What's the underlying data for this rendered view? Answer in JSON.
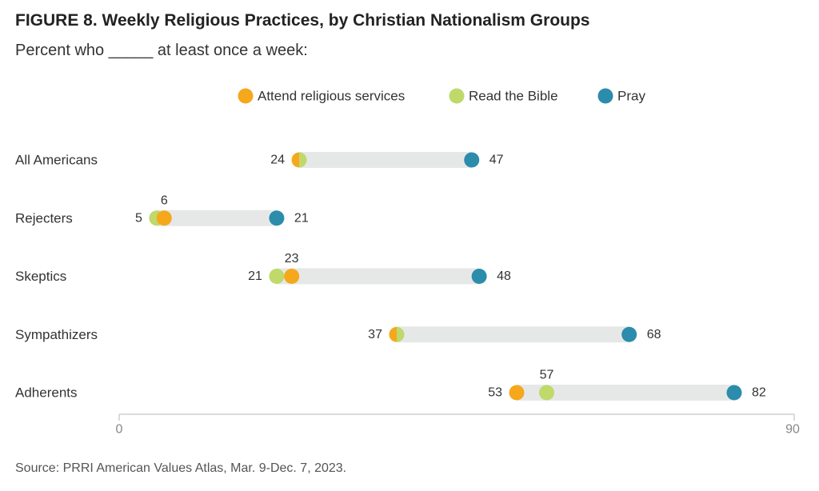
{
  "title": "FIGURE 8. Weekly Religious Practices, by Christian Nationalism Groups",
  "subtitle": "Percent who _____ at least once a week:",
  "source": "Source: PRRI American Values Atlas, Mar. 9-Dec. 7, 2023.",
  "colors": {
    "attend": "#F5A81C",
    "bible": "#BFD96A",
    "pray": "#2C8CAB",
    "track": "#E6E8E8",
    "axis": "#CFCFCF",
    "text": "#333333",
    "tick": "#888888"
  },
  "chart_data": {
    "type": "dot",
    "title": "FIGURE 8. Weekly Religious Practices, by Christian Nationalism Groups",
    "subtitle": "Percent who _____ at least once a week:",
    "xlim": [
      0,
      90
    ],
    "x_ticks": [
      "0",
      "90"
    ],
    "legend_position": "top-center",
    "grid": false,
    "categories": [
      "All Americans",
      "Rejecters",
      "Skeptics",
      "Sympathizers",
      "Adherents"
    ],
    "series": [
      {
        "name": "Attend religious services",
        "key": "attend",
        "values": [
          24,
          6,
          23,
          37,
          53
        ]
      },
      {
        "name": "Read the Bible",
        "key": "bible",
        "values": [
          24,
          5,
          21,
          37,
          57
        ]
      },
      {
        "name": "Pray",
        "key": "pray",
        "values": [
          47,
          21,
          48,
          68,
          82
        ]
      }
    ],
    "point_labels": [
      [
        {
          "text": "24",
          "side": "left"
        },
        {
          "text": "47",
          "side": "right"
        }
      ],
      [
        {
          "text": "5",
          "side": "left"
        },
        {
          "text": "6",
          "side": "above"
        },
        {
          "text": "21",
          "side": "right"
        }
      ],
      [
        {
          "text": "21",
          "side": "left"
        },
        {
          "text": "23",
          "side": "above"
        },
        {
          "text": "48",
          "side": "right"
        }
      ],
      [
        {
          "text": "37",
          "side": "left"
        },
        {
          "text": "68",
          "side": "right"
        }
      ],
      [
        {
          "text": "53",
          "side": "left"
        },
        {
          "text": "57",
          "side": "above"
        },
        {
          "text": "82",
          "side": "right"
        }
      ]
    ]
  }
}
